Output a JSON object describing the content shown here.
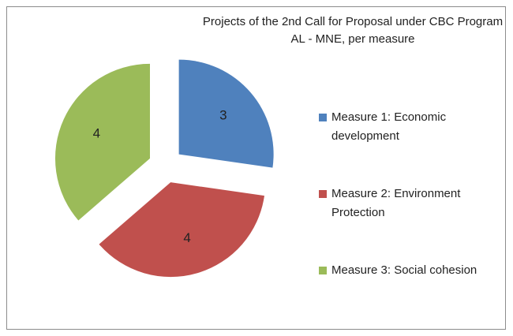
{
  "chart_data": {
    "type": "pie",
    "title": "Projects of the 2nd Call for Proposal under CBC Program AL - MNE, per measure",
    "categories": [
      "Measure 1: Economic development",
      "Measure 2: Environment Protection",
      "Measure 3: Social cohesion"
    ],
    "values": [
      3,
      4,
      4
    ],
    "colors": [
      "#4f81bd",
      "#c0504d",
      "#9bbb59"
    ],
    "legend": "right"
  }
}
